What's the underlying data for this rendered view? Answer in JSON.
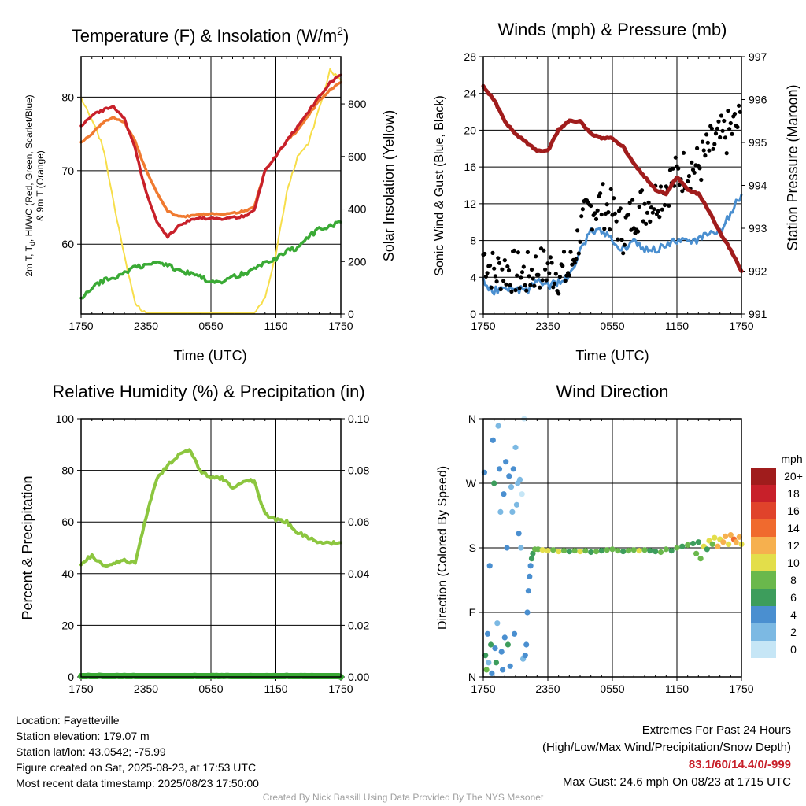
{
  "chart_data": [
    {
      "type": "line",
      "title": "Temperature (F) & Insolation (W/m",
      "title_sup": "2",
      "title_end": ")",
      "xlabel": "Time (UTC)",
      "ylabel_left_1": "2m T, T",
      "ylabel_left_sub": "d",
      "ylabel_left_2": ", HI/WC (Red, Green, Scarlet/Blue)",
      "ylabel_left_line2": "& 9m T (Orange)",
      "ylabel_right": "Solar Insolation (Yellow)",
      "x_ticks": [
        "1750",
        "2350",
        "0550",
        "1150",
        "1750"
      ],
      "y_ticks": [
        "60",
        "70",
        "80"
      ],
      "y2_ticks": [
        "0",
        "200",
        "400",
        "600",
        "800"
      ],
      "ylim": [
        50.5,
        85.5
      ],
      "y2lim": [
        0,
        980
      ],
      "x_hours": [
        0,
        1,
        2,
        3,
        4,
        5,
        6,
        7,
        8,
        9,
        10,
        11,
        12,
        13,
        14,
        15,
        16,
        17,
        18,
        19,
        20,
        21,
        22,
        23,
        24
      ],
      "series": [
        {
          "name": "2m T",
          "color": "#c8202a",
          "values": [
            76,
            77.5,
            78.2,
            78.8,
            77,
            73,
            67,
            63,
            61,
            62.5,
            63.2,
            63.5,
            63.6,
            63.5,
            63.6,
            63.8,
            64.5,
            70,
            72,
            74,
            76,
            78,
            80,
            82,
            83
          ]
        },
        {
          "name": "9m T",
          "color": "#f07a30",
          "values": [
            73.8,
            75,
            76.5,
            77.3,
            76.5,
            74,
            70,
            67,
            64.5,
            63.8,
            63.8,
            64,
            64.2,
            64.1,
            64.2,
            64.5,
            65,
            70,
            72,
            74,
            75.5,
            77.5,
            79.5,
            81,
            82
          ]
        },
        {
          "name": "Td",
          "color": "#3aaa35",
          "values": [
            52.5,
            54,
            55,
            55.5,
            56,
            57,
            57,
            57.5,
            57.2,
            56.5,
            56,
            55.5,
            55,
            55,
            55.5,
            56,
            56.5,
            57.5,
            58,
            59,
            59.5,
            61,
            62,
            62.5,
            63
          ]
        },
        {
          "name": "Solar Insolation",
          "color": "#f7de4a",
          "axis": "right",
          "values": [
            820,
            740,
            640,
            430,
            220,
            40,
            0,
            0,
            0,
            0,
            0,
            0,
            0,
            0,
            0,
            0,
            0,
            60,
            230,
            460,
            600,
            650,
            780,
            930,
            890
          ]
        }
      ]
    },
    {
      "type": "line",
      "title": "Winds (mph) & Pressure (mb)",
      "xlabel": "Time (UTC)",
      "ylabel": "Sonic Wind & Gust (Blue, Black)",
      "ylabel_right": "Station Pressure (Maroon)",
      "x_ticks": [
        "1750",
        "2350",
        "0550",
        "1150",
        "1750"
      ],
      "y_ticks": [
        "0",
        "4",
        "8",
        "12",
        "16",
        "20",
        "24",
        "28"
      ],
      "y2_ticks": [
        "991",
        "992",
        "993",
        "994",
        "995",
        "996",
        "997"
      ],
      "ylim": [
        0,
        28
      ],
      "y2lim": [
        991,
        997
      ],
      "x_hours": [
        0,
        1,
        2,
        3,
        4,
        5,
        6,
        7,
        8,
        9,
        10,
        11,
        12,
        13,
        14,
        15,
        16,
        17,
        18,
        19,
        20,
        21,
        22,
        23,
        24
      ],
      "series": [
        {
          "name": "Sonic Wind",
          "color": "#4a8fd0",
          "values": [
            3.5,
            2.5,
            3,
            2.8,
            2.5,
            3.5,
            3,
            3.5,
            4,
            7,
            9,
            9,
            8,
            7,
            8,
            7,
            7,
            7.5,
            8,
            8,
            8,
            9,
            9,
            11,
            13
          ]
        },
        {
          "name": "Gust",
          "color": "#000000",
          "values": [
            6.5,
            4.5,
            5,
            4.5,
            4.2,
            5,
            5,
            4.5,
            4.5,
            9,
            11.5,
            12,
            11,
            9,
            11,
            12,
            12.5,
            14,
            15,
            16,
            16,
            18,
            19,
            20,
            21
          ]
        },
        {
          "name": "Station Pressure",
          "color": "#a01c1c",
          "axis": "right",
          "values": [
            996.3,
            996,
            995.5,
            995.2,
            995,
            994.8,
            994.8,
            995.3,
            995.5,
            995.5,
            995.2,
            995.1,
            995.1,
            994.9,
            994.5,
            994.2,
            993.9,
            993.8,
            994.2,
            993.9,
            993.8,
            993.4,
            992.9,
            992.5,
            992
          ]
        }
      ]
    },
    {
      "type": "line",
      "title": "Relative Humidity (%) & Precipitation (in)",
      "ylabel": "Percent & Precipitation",
      "x_ticks": [
        "1750",
        "2350",
        "0550",
        "1150",
        "1750"
      ],
      "y_ticks": [
        "0",
        "20",
        "40",
        "60",
        "80",
        "100"
      ],
      "y2_ticks": [
        "0.00",
        "0.02",
        "0.04",
        "0.06",
        "0.08",
        "0.10"
      ],
      "ylim": [
        0,
        100
      ],
      "y2lim": [
        0,
        0.1
      ],
      "x_hours": [
        0,
        1,
        2,
        3,
        4,
        5,
        6,
        7,
        8,
        9,
        10,
        11,
        12,
        13,
        14,
        15,
        16,
        17,
        18,
        19,
        20,
        21,
        22,
        23,
        24
      ],
      "series": [
        {
          "name": "Relative Humidity",
          "color": "#8cc63f",
          "values": [
            44,
            47,
            43,
            44,
            45,
            44,
            62,
            77,
            82,
            86,
            88,
            80,
            77,
            77,
            73,
            76,
            76,
            63,
            61,
            60,
            56,
            54,
            52,
            52,
            52
          ]
        },
        {
          "name": "Precipitation",
          "color": "#3aaa35",
          "axis": "right",
          "values": [
            0,
            0,
            0,
            0,
            0,
            0,
            0,
            0,
            0,
            0,
            0,
            0,
            0,
            0,
            0,
            0,
            0,
            0,
            0,
            0,
            0,
            0,
            0,
            0,
            0
          ]
        }
      ]
    },
    {
      "type": "scatter",
      "title": "Wind Direction",
      "ylabel": "Direction (Colored By Speed)",
      "x_ticks": [
        "1750",
        "2350",
        "0550",
        "1150",
        "1750"
      ],
      "y_ticks": [
        "N",
        "E",
        "S",
        "W",
        "N"
      ],
      "ylim": [
        0,
        360
      ],
      "colorbar_title": "mph",
      "colorbar_labels": [
        "0",
        "2",
        "4",
        "6",
        "8",
        "10",
        "12",
        "14",
        "16",
        "18",
        "20+"
      ],
      "colorbar_colors": [
        "#c6e6f6",
        "#7cb9e3",
        "#4a8fd0",
        "#3d9d5c",
        "#6ab84c",
        "#e3de4a",
        "#f6b04e",
        "#f06a2e",
        "#e0432b",
        "#c8202a",
        "#a01c1c"
      ],
      "points": [
        {
          "x": 0.1,
          "y": 285,
          "c": 2
        },
        {
          "x": 0.2,
          "y": 30,
          "c": 3
        },
        {
          "x": 0.3,
          "y": 10,
          "c": 4
        },
        {
          "x": 0.4,
          "y": 60,
          "c": 2
        },
        {
          "x": 0.5,
          "y": 20,
          "c": 1
        },
        {
          "x": 0.6,
          "y": 155,
          "c": 2
        },
        {
          "x": 0.7,
          "y": 45,
          "c": 3
        },
        {
          "x": 0.8,
          "y": 5,
          "c": 2
        },
        {
          "x": 0.9,
          "y": 330,
          "c": 2
        },
        {
          "x": 1.0,
          "y": 270,
          "c": 3
        },
        {
          "x": 1.1,
          "y": 40,
          "c": 2
        },
        {
          "x": 1.2,
          "y": 20,
          "c": 3
        },
        {
          "x": 1.3,
          "y": 75,
          "c": 1
        },
        {
          "x": 1.4,
          "y": 350,
          "c": 1
        },
        {
          "x": 1.5,
          "y": 290,
          "c": 2
        },
        {
          "x": 1.6,
          "y": 230,
          "c": 1
        },
        {
          "x": 1.7,
          "y": 35,
          "c": 2
        },
        {
          "x": 1.8,
          "y": 10,
          "c": 2
        },
        {
          "x": 1.9,
          "y": 255,
          "c": 2
        },
        {
          "x": 2.0,
          "y": 55,
          "c": 2
        },
        {
          "x": 2.1,
          "y": 300,
          "c": 2
        },
        {
          "x": 2.2,
          "y": 180,
          "c": 2
        },
        {
          "x": 2.3,
          "y": 45,
          "c": 3
        },
        {
          "x": 2.4,
          "y": 280,
          "c": 2
        },
        {
          "x": 2.5,
          "y": 15,
          "c": 2
        },
        {
          "x": 2.6,
          "y": 265,
          "c": 1
        },
        {
          "x": 2.7,
          "y": 230,
          "c": 1
        },
        {
          "x": 2.8,
          "y": 290,
          "c": 2
        },
        {
          "x": 2.9,
          "y": 60,
          "c": 2
        },
        {
          "x": 3.0,
          "y": 320,
          "c": 1
        },
        {
          "x": 3.1,
          "y": 240,
          "c": 1
        },
        {
          "x": 3.2,
          "y": 270,
          "c": 1
        },
        {
          "x": 3.3,
          "y": 200,
          "c": 2
        },
        {
          "x": 3.4,
          "y": 275,
          "c": 1
        },
        {
          "x": 3.5,
          "y": 180,
          "c": 1
        },
        {
          "x": 3.6,
          "y": 255,
          "c": 0
        },
        {
          "x": 3.7,
          "y": 25,
          "c": 1
        },
        {
          "x": 3.8,
          "y": 360,
          "c": 0
        },
        {
          "x": 3.9,
          "y": 30,
          "c": 2
        },
        {
          "x": 4.0,
          "y": 45,
          "c": 2
        },
        {
          "x": 4.1,
          "y": 90,
          "c": 2
        },
        {
          "x": 4.2,
          "y": 120,
          "c": 2
        },
        {
          "x": 4.3,
          "y": 140,
          "c": 2
        },
        {
          "x": 4.4,
          "y": 155,
          "c": 2
        },
        {
          "x": 4.5,
          "y": 165,
          "c": 3
        },
        {
          "x": 4.6,
          "y": 172,
          "c": 3
        },
        {
          "x": 4.8,
          "y": 178,
          "c": 4
        },
        {
          "x": 5.1,
          "y": 178,
          "c": 4
        },
        {
          "x": 5.5,
          "y": 177,
          "c": 5
        },
        {
          "x": 6.0,
          "y": 176,
          "c": 5
        },
        {
          "x": 6.5,
          "y": 177,
          "c": 4
        },
        {
          "x": 7.0,
          "y": 175,
          "c": 5
        },
        {
          "x": 7.5,
          "y": 176,
          "c": 4
        },
        {
          "x": 8.0,
          "y": 175,
          "c": 3
        },
        {
          "x": 8.5,
          "y": 176,
          "c": 4
        },
        {
          "x": 9.0,
          "y": 175,
          "c": 5
        },
        {
          "x": 9.5,
          "y": 176,
          "c": 4
        },
        {
          "x": 10.0,
          "y": 174,
          "c": 3
        },
        {
          "x": 10.5,
          "y": 175,
          "c": 4
        },
        {
          "x": 11.0,
          "y": 176,
          "c": 3
        },
        {
          "x": 11.5,
          "y": 177,
          "c": 4
        },
        {
          "x": 12.0,
          "y": 178,
          "c": 4
        },
        {
          "x": 12.5,
          "y": 176,
          "c": 4
        },
        {
          "x": 13.0,
          "y": 175,
          "c": 3
        },
        {
          "x": 13.5,
          "y": 176,
          "c": 4
        },
        {
          "x": 14.0,
          "y": 177,
          "c": 4
        },
        {
          "x": 14.5,
          "y": 176,
          "c": 5
        },
        {
          "x": 15.0,
          "y": 177,
          "c": 4
        },
        {
          "x": 15.5,
          "y": 176,
          "c": 3
        },
        {
          "x": 16.0,
          "y": 175,
          "c": 3
        },
        {
          "x": 16.5,
          "y": 174,
          "c": 4
        },
        {
          "x": 17.0,
          "y": 178,
          "c": 4
        },
        {
          "x": 17.5,
          "y": 176,
          "c": 3
        },
        {
          "x": 18.0,
          "y": 180,
          "c": 4
        },
        {
          "x": 18.5,
          "y": 182,
          "c": 3
        },
        {
          "x": 19.0,
          "y": 184,
          "c": 4
        },
        {
          "x": 19.5,
          "y": 186,
          "c": 3
        },
        {
          "x": 19.8,
          "y": 172,
          "c": 4
        },
        {
          "x": 20.0,
          "y": 188,
          "c": 3
        },
        {
          "x": 20.2,
          "y": 165,
          "c": 4
        },
        {
          "x": 20.5,
          "y": 182,
          "c": 5
        },
        {
          "x": 20.8,
          "y": 178,
          "c": 3
        },
        {
          "x": 21.0,
          "y": 190,
          "c": 5
        },
        {
          "x": 21.3,
          "y": 185,
          "c": 4
        },
        {
          "x": 21.5,
          "y": 194,
          "c": 5
        },
        {
          "x": 21.8,
          "y": 182,
          "c": 6
        },
        {
          "x": 22.0,
          "y": 192,
          "c": 5
        },
        {
          "x": 22.3,
          "y": 188,
          "c": 6
        },
        {
          "x": 22.5,
          "y": 196,
          "c": 6
        },
        {
          "x": 22.8,
          "y": 185,
          "c": 5
        },
        {
          "x": 23.0,
          "y": 198,
          "c": 6
        },
        {
          "x": 23.3,
          "y": 192,
          "c": 7
        },
        {
          "x": 23.5,
          "y": 188,
          "c": 6
        },
        {
          "x": 23.8,
          "y": 195,
          "c": 6
        },
        {
          "x": 24.0,
          "y": 185,
          "c": 5
        }
      ]
    }
  ],
  "info_left": {
    "location": "Location: Fayetteville",
    "elevation": "Station elevation: 179.07 m",
    "latlon": "Station lat/lon: 43.0542; -75.99",
    "created": "Figure created on Sat, 2025-08-23, at 17:53 UTC",
    "recent": "Most recent data timestamp: 2025/08/23 17:50:00"
  },
  "info_right": {
    "heading": "Extremes For Past 24 Hours",
    "subheading": "(High/Low/Max Wind/Precipitation/Snow Depth)",
    "values": "83.1/60/14.4/0/-999",
    "max_gust": "Max Gust: 24.6 mph On 08/23 at 1715 UTC"
  },
  "credit": "Created By Nick Bassill Using Data Provided By The NYS Mesonet"
}
